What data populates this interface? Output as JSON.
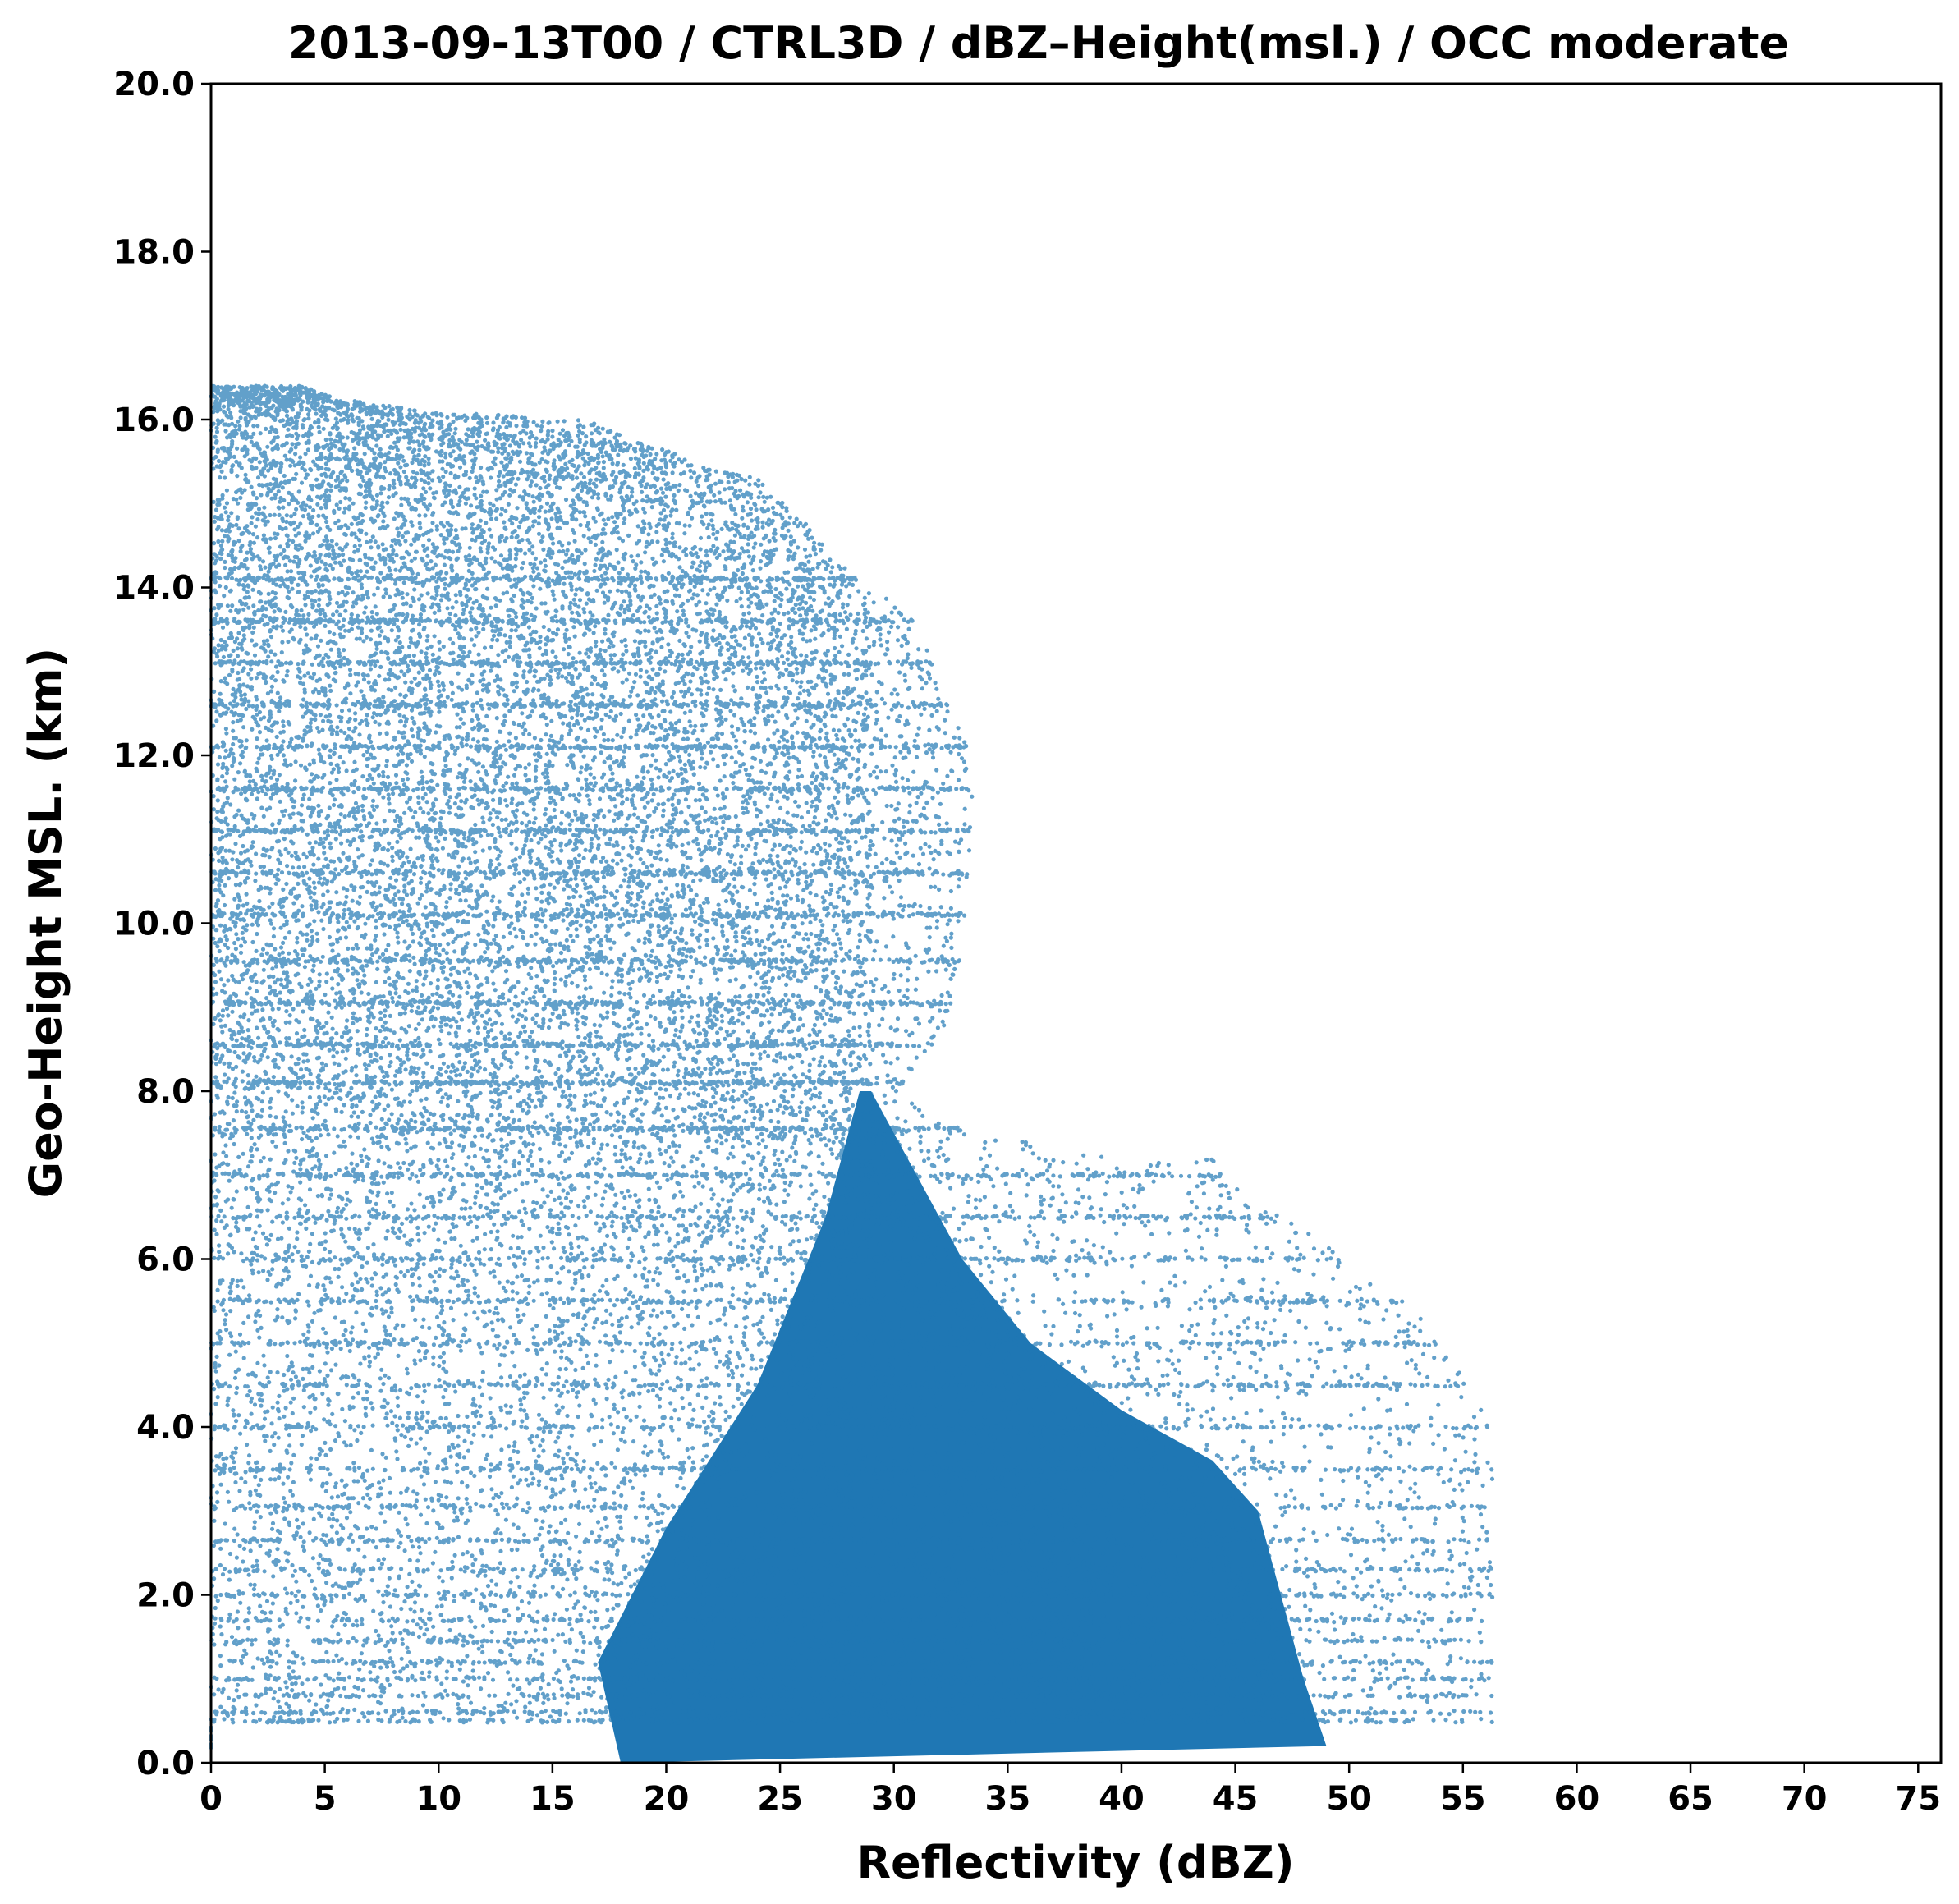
{
  "chart_data": {
    "type": "scatter",
    "title": "2013-09-13T00 / CTRL3D / dBZ–Height(msl.) / OCC moderate",
    "xlabel": "Reflectivity (dBZ)",
    "ylabel": "Geo-Height MSL. (km)",
    "xlim": [
      0,
      76
    ],
    "ylim": [
      0,
      20
    ],
    "x_ticks": [
      0,
      5,
      10,
      15,
      20,
      25,
      30,
      35,
      40,
      45,
      50,
      55,
      60,
      65,
      70,
      75
    ],
    "x_tick_labels": [
      "0",
      "5",
      "10",
      "15",
      "20",
      "25",
      "30",
      "35",
      "40",
      "45",
      "50",
      "55",
      "60",
      "65",
      "70",
      "75"
    ],
    "y_ticks": [
      0,
      2,
      4,
      6,
      8,
      10,
      12,
      14,
      16,
      18,
      20
    ],
    "y_tick_labels": [
      "0.0",
      "2.0",
      "4.0",
      "6.0",
      "8.0",
      "10.0",
      "12.0",
      "14.0",
      "16.0",
      "18.0",
      "20.0"
    ],
    "grid": false,
    "color": "#1f77b4",
    "series": [
      {
        "description_points": [
          [
            0.5,
            16.1
          ],
          [
            2,
            16.2
          ],
          [
            4,
            16.4
          ],
          [
            5.5,
            16.25
          ],
          [
            7.8,
            16.2
          ],
          [
            9.5,
            16.1
          ],
          [
            13.5,
            16.0
          ],
          [
            16.5,
            16.0
          ],
          [
            18.5,
            15.75
          ],
          [
            20.5,
            15.6
          ],
          [
            22,
            15.4
          ],
          [
            24,
            15.3
          ],
          [
            26,
            14.8
          ],
          [
            27.5,
            14.3
          ],
          [
            29.5,
            13.9
          ],
          [
            31,
            13.6
          ],
          [
            32,
            12.9
          ],
          [
            33.2,
            12.1
          ],
          [
            33.5,
            11.4
          ],
          [
            33.2,
            10.6
          ],
          [
            33,
            9.7
          ],
          [
            32.3,
            8.8
          ],
          [
            30.3,
            8.0
          ],
          [
            32.5,
            7.6
          ],
          [
            35,
            7.4
          ],
          [
            38,
            7.2
          ],
          [
            41,
            7.0
          ],
          [
            44,
            7.2
          ],
          [
            46,
            6.6
          ],
          [
            48.5,
            6.3
          ],
          [
            50,
            5.9
          ],
          [
            52.5,
            5.5
          ],
          [
            54,
            5.0
          ],
          [
            55.5,
            4.5
          ],
          [
            56.3,
            4.0
          ],
          [
            56.3,
            3.5
          ],
          [
            55.6,
            3.0
          ],
          [
            55,
            2.2
          ],
          [
            54.5,
            1.5
          ],
          [
            55.2,
            0.7
          ],
          [
            55.8,
            0.3
          ],
          [
            51.8,
            0.0
          ]
        ],
        "dense_core_points": [
          [
            29,
            8.0
          ],
          [
            31,
            7.0
          ],
          [
            33,
            6.0
          ],
          [
            36,
            5.0
          ],
          [
            40,
            4.2
          ],
          [
            44,
            3.6
          ],
          [
            46,
            3.0
          ],
          [
            47,
            2.0
          ],
          [
            48,
            1.0
          ],
          [
            49,
            0.2
          ]
        ],
        "scan_levels_km": [
          0.2,
          0.3,
          0.4,
          0.5,
          0.6,
          0.8,
          1.0,
          1.2,
          1.45,
          1.7,
          2.0,
          2.3,
          2.65,
          3.05,
          3.5,
          4.0,
          4.5,
          5.0,
          5.5,
          6.0,
          6.5,
          7.0,
          7.55,
          8.1,
          8.55,
          9.05,
          9.55,
          10.1,
          10.6,
          11.1,
          11.6,
          12.1,
          12.6,
          13.1,
          13.6,
          14.1
        ]
      }
    ]
  }
}
